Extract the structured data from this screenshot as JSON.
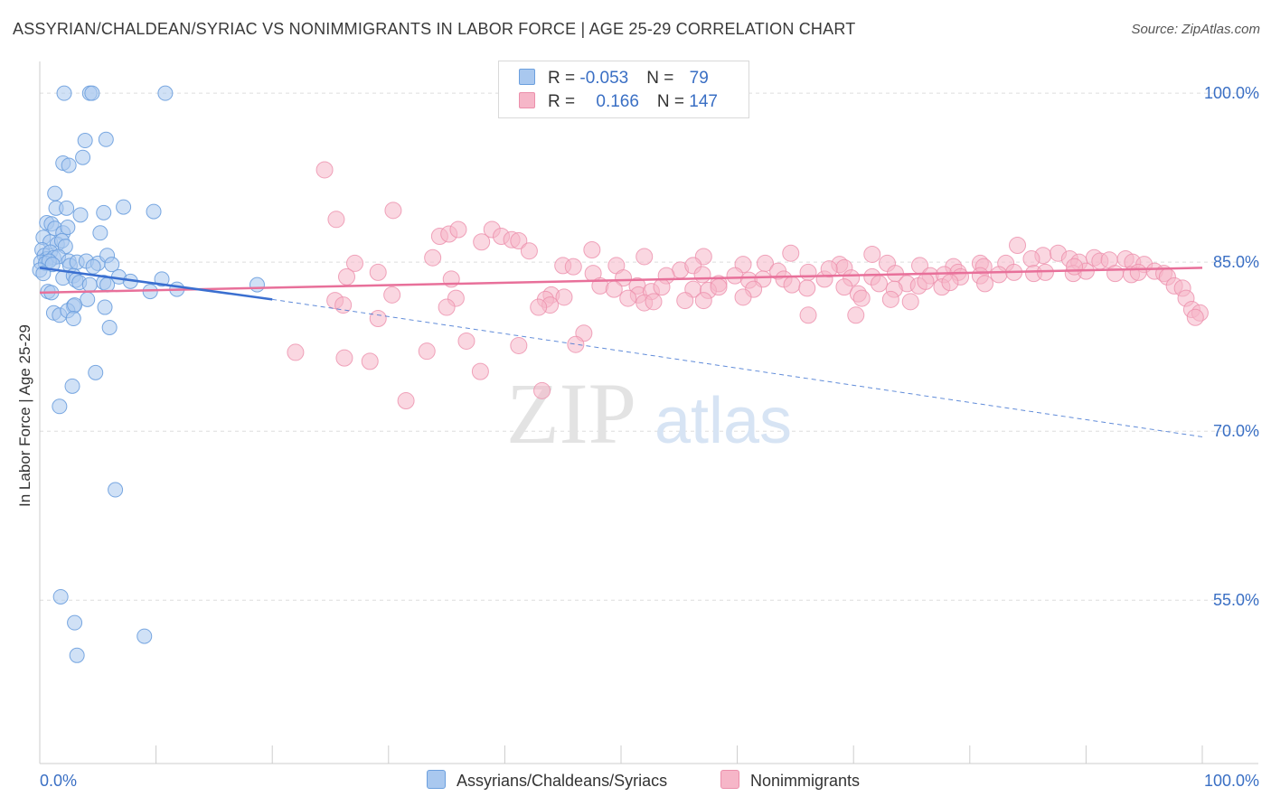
{
  "title": "ASSYRIAN/CHALDEAN/SYRIAC VS NONIMMIGRANTS IN LABOR FORCE | AGE 25-29 CORRELATION CHART",
  "source": "Source: ZipAtlas.com",
  "watermark": {
    "zip": "ZIP",
    "atlas": "atlas"
  },
  "legend_top": {
    "row1": {
      "r_label": "R = ",
      "r_value": "-0.053",
      "n_label": "N = ",
      "n_value": "79"
    },
    "row2": {
      "r_label": "R = ",
      "r_value": "0.166",
      "n_label": "N = ",
      "n_value": "147"
    }
  },
  "colors": {
    "blue_fill": "#a9c8ef",
    "blue_stroke": "#6b9fde",
    "blue_line": "#3a6fd0",
    "pink_fill": "#f6b6c8",
    "pink_stroke": "#ec8fab",
    "pink_line": "#e8709a",
    "axis_text": "#3a6fc4",
    "grid": "#dddddd"
  },
  "chart_data": {
    "type": "scatter",
    "title": "ASSYRIAN/CHALDEAN/SYRIAC VS NONIMMIGRANTS IN LABOR FORCE | AGE 25-29 CORRELATION CHART",
    "xlabel": "",
    "ylabel": "In Labor Force | Age 25-29",
    "xlim": [
      0,
      100
    ],
    "ylim": [
      40.5,
      102.5
    ],
    "x_tick_labels": [
      "0.0%",
      "100.0%"
    ],
    "y_ticks": [
      55,
      70,
      85,
      100
    ],
    "y_tick_labels": [
      "55.0%",
      "70.0%",
      "85.0%",
      "100.0%"
    ],
    "grid": true,
    "legend": "bottom-center",
    "series": [
      {
        "name": "Assyrians/Chaldeans/Syriacs",
        "r": -0.053,
        "n": 79,
        "trend": {
          "x0": 0,
          "y0": 84.5,
          "x1": 20,
          "y1": 81.7,
          "dashed_to_x": 100,
          "dashed_to_y": 69.5
        },
        "points": [
          [
            2.1,
            100
          ],
          [
            4.3,
            100
          ],
          [
            4.5,
            100
          ],
          [
            10.8,
            100
          ],
          [
            3.9,
            95.8
          ],
          [
            5.7,
            95.9
          ],
          [
            2.0,
            93.8
          ],
          [
            2.5,
            93.6
          ],
          [
            3.7,
            94.3
          ],
          [
            1.3,
            91.1
          ],
          [
            1.4,
            89.8
          ],
          [
            2.3,
            89.8
          ],
          [
            3.5,
            89.2
          ],
          [
            5.5,
            89.4
          ],
          [
            7.2,
            89.9
          ],
          [
            9.8,
            89.5
          ],
          [
            0.6,
            88.5
          ],
          [
            1.0,
            88.4
          ],
          [
            1.3,
            88.0
          ],
          [
            2.0,
            87.6
          ],
          [
            2.4,
            88.1
          ],
          [
            5.2,
            87.6
          ],
          [
            0.3,
            87.2
          ],
          [
            0.9,
            86.8
          ],
          [
            1.5,
            86.6
          ],
          [
            1.9,
            86.9
          ],
          [
            2.2,
            86.4
          ],
          [
            0.2,
            86.1
          ],
          [
            0.4,
            85.6
          ],
          [
            0.6,
            85.3
          ],
          [
            0.9,
            85.9
          ],
          [
            1.2,
            85.4
          ],
          [
            1.6,
            85.5
          ],
          [
            2.5,
            85.1
          ],
          [
            0.1,
            85.0
          ],
          [
            0.5,
            84.9
          ],
          [
            0.8,
            85.1
          ],
          [
            1.1,
            84.8
          ],
          [
            2.6,
            84.7
          ],
          [
            3.2,
            85.0
          ],
          [
            4.0,
            85.1
          ],
          [
            5.0,
            84.9
          ],
          [
            5.8,
            85.6
          ],
          [
            6.2,
            84.8
          ],
          [
            0.0,
            84.3
          ],
          [
            0.3,
            84.0
          ],
          [
            2.0,
            83.6
          ],
          [
            2.9,
            83.8
          ],
          [
            3.1,
            83.4
          ],
          [
            3.4,
            83.2
          ],
          [
            4.3,
            83.0
          ],
          [
            5.5,
            83.2
          ],
          [
            5.8,
            83.0
          ],
          [
            6.8,
            83.7
          ],
          [
            10.5,
            83.5
          ],
          [
            0.7,
            82.4
          ],
          [
            1.0,
            82.3
          ],
          [
            9.5,
            82.4
          ],
          [
            11.8,
            82.6
          ],
          [
            18.7,
            83.0
          ],
          [
            4.1,
            81.7
          ],
          [
            2.9,
            81.1
          ],
          [
            5.6,
            81.0
          ],
          [
            1.2,
            80.5
          ],
          [
            1.7,
            80.3
          ],
          [
            2.4,
            80.7
          ],
          [
            3.0,
            81.2
          ],
          [
            2.9,
            80.0
          ],
          [
            6.0,
            79.2
          ],
          [
            4.8,
            75.2
          ],
          [
            2.8,
            74.0
          ],
          [
            1.7,
            72.2
          ],
          [
            6.5,
            64.8
          ],
          [
            1.8,
            55.3
          ],
          [
            3.0,
            53.0
          ],
          [
            9.0,
            51.8
          ],
          [
            3.2,
            50.1
          ],
          [
            7.8,
            83.3
          ],
          [
            4.6,
            84.6
          ]
        ]
      },
      {
        "name": "Nonimmigrants",
        "r": 0.166,
        "n": 147,
        "trend": {
          "x0": 0,
          "y0": 82.3,
          "x1": 100,
          "y1": 84.5
        },
        "points": [
          [
            24.5,
            93.2
          ],
          [
            25.5,
            88.8
          ],
          [
            30.4,
            89.6
          ],
          [
            34.4,
            87.3
          ],
          [
            35.2,
            87.5
          ],
          [
            36.0,
            87.9
          ],
          [
            38.9,
            87.9
          ],
          [
            39.7,
            87.3
          ],
          [
            40.6,
            87.0
          ],
          [
            41.2,
            86.9
          ],
          [
            42.1,
            86.0
          ],
          [
            38.0,
            86.8
          ],
          [
            47.5,
            86.1
          ],
          [
            52.0,
            85.5
          ],
          [
            57.1,
            85.5
          ],
          [
            64.6,
            85.8
          ],
          [
            71.6,
            85.7
          ],
          [
            86.3,
            85.6
          ],
          [
            87.6,
            85.8
          ],
          [
            84.1,
            86.5
          ],
          [
            27.1,
            84.9
          ],
          [
            29.1,
            84.1
          ],
          [
            33.8,
            85.4
          ],
          [
            45.0,
            84.7
          ],
          [
            45.9,
            84.6
          ],
          [
            49.6,
            84.7
          ],
          [
            55.1,
            84.3
          ],
          [
            56.2,
            84.7
          ],
          [
            60.5,
            84.8
          ],
          [
            62.4,
            84.9
          ],
          [
            68.8,
            84.8
          ],
          [
            69.2,
            84.5
          ],
          [
            72.9,
            84.9
          ],
          [
            75.7,
            84.7
          ],
          [
            78.6,
            84.6
          ],
          [
            80.9,
            84.9
          ],
          [
            81.2,
            84.6
          ],
          [
            83.1,
            84.9
          ],
          [
            85.3,
            85.3
          ],
          [
            88.6,
            85.3
          ],
          [
            89.4,
            85.0
          ],
          [
            90.7,
            85.4
          ],
          [
            91.2,
            85.1
          ],
          [
            92.0,
            85.2
          ],
          [
            93.4,
            85.3
          ],
          [
            94.0,
            85.0
          ],
          [
            95.0,
            84.8
          ],
          [
            26.4,
            83.7
          ],
          [
            35.4,
            83.5
          ],
          [
            47.6,
            84.0
          ],
          [
            50.2,
            83.6
          ],
          [
            51.4,
            82.9
          ],
          [
            53.9,
            83.8
          ],
          [
            57.0,
            83.9
          ],
          [
            58.4,
            83.1
          ],
          [
            59.8,
            83.8
          ],
          [
            61.0,
            83.4
          ],
          [
            62.2,
            83.5
          ],
          [
            63.5,
            84.2
          ],
          [
            64.0,
            83.5
          ],
          [
            66.1,
            84.1
          ],
          [
            67.5,
            83.5
          ],
          [
            69.8,
            83.6
          ],
          [
            71.6,
            83.7
          ],
          [
            73.6,
            84.0
          ],
          [
            74.6,
            83.1
          ],
          [
            76.6,
            83.8
          ],
          [
            77.8,
            83.9
          ],
          [
            79.0,
            84.1
          ],
          [
            79.2,
            83.7
          ],
          [
            80.9,
            83.8
          ],
          [
            82.5,
            83.9
          ],
          [
            83.8,
            84.1
          ],
          [
            85.5,
            84.0
          ],
          [
            86.5,
            84.1
          ],
          [
            88.9,
            84.0
          ],
          [
            90.0,
            84.2
          ],
          [
            92.5,
            84.0
          ],
          [
            93.9,
            83.9
          ],
          [
            94.5,
            84.1
          ],
          [
            95.9,
            84.2
          ],
          [
            96.7,
            84.0
          ],
          [
            97.0,
            83.7
          ],
          [
            48.2,
            82.9
          ],
          [
            49.4,
            82.6
          ],
          [
            51.5,
            82.1
          ],
          [
            52.6,
            82.4
          ],
          [
            53.5,
            82.8
          ],
          [
            56.2,
            82.6
          ],
          [
            57.5,
            82.5
          ],
          [
            58.4,
            82.8
          ],
          [
            61.4,
            82.6
          ],
          [
            64.7,
            83.0
          ],
          [
            66.0,
            82.7
          ],
          [
            69.2,
            82.8
          ],
          [
            70.4,
            82.2
          ],
          [
            72.2,
            83.1
          ],
          [
            73.5,
            82.6
          ],
          [
            75.6,
            82.9
          ],
          [
            76.2,
            83.3
          ],
          [
            77.6,
            82.8
          ],
          [
            78.3,
            83.2
          ],
          [
            81.3,
            83.1
          ],
          [
            97.6,
            82.9
          ],
          [
            98.3,
            82.7
          ],
          [
            30.3,
            82.1
          ],
          [
            35.8,
            81.8
          ],
          [
            44.0,
            82.1
          ],
          [
            43.5,
            81.7
          ],
          [
            45.1,
            81.9
          ],
          [
            50.6,
            81.8
          ],
          [
            52.0,
            81.4
          ],
          [
            52.8,
            81.5
          ],
          [
            55.5,
            81.6
          ],
          [
            57.1,
            81.6
          ],
          [
            70.7,
            81.8
          ],
          [
            73.2,
            81.7
          ],
          [
            74.9,
            81.5
          ],
          [
            98.6,
            81.8
          ],
          [
            25.4,
            81.6
          ],
          [
            26.1,
            81.2
          ],
          [
            35.0,
            81.0
          ],
          [
            43.9,
            81.2
          ],
          [
            42.9,
            81.0
          ],
          [
            99.1,
            80.8
          ],
          [
            29.1,
            80.0
          ],
          [
            66.1,
            80.3
          ],
          [
            70.2,
            80.3
          ],
          [
            99.8,
            80.5
          ],
          [
            99.4,
            80.1
          ],
          [
            46.8,
            78.7
          ],
          [
            36.7,
            78.0
          ],
          [
            46.1,
            77.7
          ],
          [
            41.2,
            77.6
          ],
          [
            22.0,
            77.0
          ],
          [
            33.3,
            77.1
          ],
          [
            26.2,
            76.5
          ],
          [
            28.4,
            76.2
          ],
          [
            37.9,
            75.3
          ],
          [
            43.2,
            73.6
          ],
          [
            31.5,
            72.7
          ],
          [
            60.5,
            81.9
          ],
          [
            67.9,
            84.4
          ],
          [
            89.0,
            84.6
          ]
        ]
      }
    ]
  }
}
